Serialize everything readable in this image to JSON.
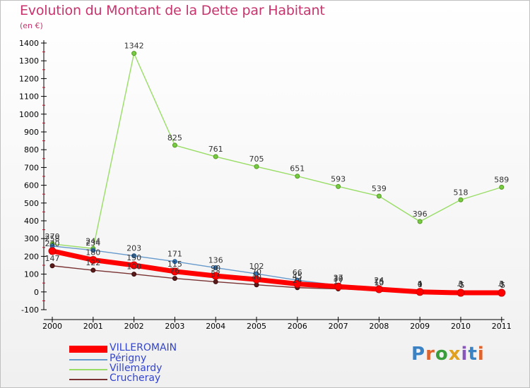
{
  "chart_data": {
    "type": "line",
    "title": "Evolution du Montant de la Dette par Habitant",
    "unit": "(en €)",
    "x": [
      "2000",
      "2001",
      "2002",
      "2003",
      "2004",
      "2005",
      "2006",
      "2007",
      "2008",
      "2009",
      "2010",
      "2011"
    ],
    "ylim": [
      -100,
      1400
    ],
    "yticks": [
      -100,
      0,
      100,
      200,
      300,
      400,
      500,
      600,
      700,
      800,
      900,
      1000,
      1100,
      1200,
      1300,
      1400
    ],
    "grid": false,
    "legend_position": "bottom-left",
    "series": [
      {
        "name": "VILLEROMAIN",
        "color": "#ff0000",
        "values": [
          230,
          180,
          150,
          115,
          90,
          70,
          45,
          30,
          15,
          0,
          -5,
          -5
        ],
        "labels": [
          "230",
          "180",
          "150",
          "115",
          "90",
          "70",
          "45",
          "30",
          "15",
          "0",
          "-5",
          "-5"
        ]
      },
      {
        "name": "Périgny",
        "color": "#6699cc",
        "values": [
          258,
          234,
          203,
          171,
          136,
          102,
          66,
          37,
          24,
          4,
          0,
          0
        ],
        "labels": [
          "258",
          "234",
          "203",
          "171",
          "136",
          "102",
          "66",
          "37",
          "24",
          "4",
          "0",
          "0"
        ]
      },
      {
        "name": "Villemardy",
        "color": "#99dd66",
        "values": [
          270,
          244,
          1342,
          825,
          761,
          705,
          651,
          593,
          539,
          396,
          518,
          589
        ],
        "labels": [
          "270",
          "244",
          "1342",
          "825",
          "761",
          "705",
          "651",
          "593",
          "539",
          "396",
          "518",
          "589"
        ]
      },
      {
        "name": "Crucheray",
        "color": "#7a3333",
        "values": [
          147,
          122,
          100,
          76,
          57,
          40,
          24,
          17,
          10,
          1,
          3,
          3
        ],
        "labels": [
          "147",
          "122",
          "100",
          "76",
          "57",
          "40",
          "24",
          "17",
          "10",
          "1",
          "3",
          "3"
        ]
      }
    ]
  },
  "logo": {
    "text": "Proxiti",
    "colors": [
      "#3b82c4",
      "#e0632b",
      "#3a9d3a",
      "#e0a020",
      "#8855bb",
      "#3b82c4",
      "#e0632b"
    ]
  }
}
